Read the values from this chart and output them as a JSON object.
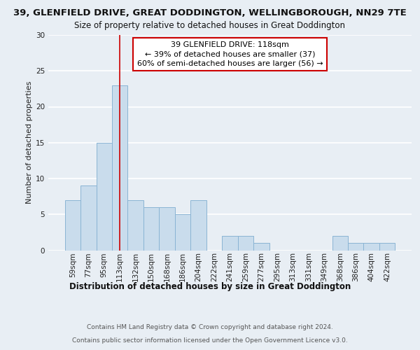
{
  "title": "39, GLENFIELD DRIVE, GREAT DODDINGTON, WELLINGBOROUGH, NN29 7TE",
  "subtitle": "Size of property relative to detached houses in Great Doddington",
  "xlabel": "Distribution of detached houses by size in Great Doddington",
  "ylabel": "Number of detached properties",
  "footer_line1": "Contains HM Land Registry data © Crown copyright and database right 2024.",
  "footer_line2": "Contains public sector information licensed under the Open Government Licence v3.0.",
  "categories": [
    "59sqm",
    "77sqm",
    "95sqm",
    "113sqm",
    "132sqm",
    "150sqm",
    "168sqm",
    "186sqm",
    "204sqm",
    "222sqm",
    "241sqm",
    "259sqm",
    "277sqm",
    "295sqm",
    "313sqm",
    "331sqm",
    "349sqm",
    "368sqm",
    "386sqm",
    "404sqm",
    "422sqm"
  ],
  "values": [
    7,
    9,
    15,
    23,
    7,
    6,
    6,
    5,
    7,
    0,
    2,
    2,
    1,
    0,
    0,
    0,
    0,
    2,
    1,
    1,
    1
  ],
  "bar_color": "#c9dcec",
  "bar_edge_color": "#8ab4d4",
  "annotation_line1": "39 GLENFIELD DRIVE: 118sqm",
  "annotation_line2": "← 39% of detached houses are smaller (37)",
  "annotation_line3": "60% of semi-detached houses are larger (56) →",
  "annotation_box_color": "#ffffff",
  "annotation_box_edge_color": "#cc0000",
  "annotation_text_color": "#000000",
  "vline_x": 3,
  "vline_color": "#cc0000",
  "ylim": [
    0,
    30
  ],
  "yticks": [
    0,
    5,
    10,
    15,
    20,
    25,
    30
  ],
  "bg_color": "#e8eef4",
  "grid_color": "#ffffff",
  "title_fontsize": 9.5,
  "subtitle_fontsize": 8.5,
  "xlabel_fontsize": 8.5,
  "ylabel_fontsize": 8,
  "tick_fontsize": 7.5,
  "annotation_fontsize": 8,
  "footer_fontsize": 6.5
}
